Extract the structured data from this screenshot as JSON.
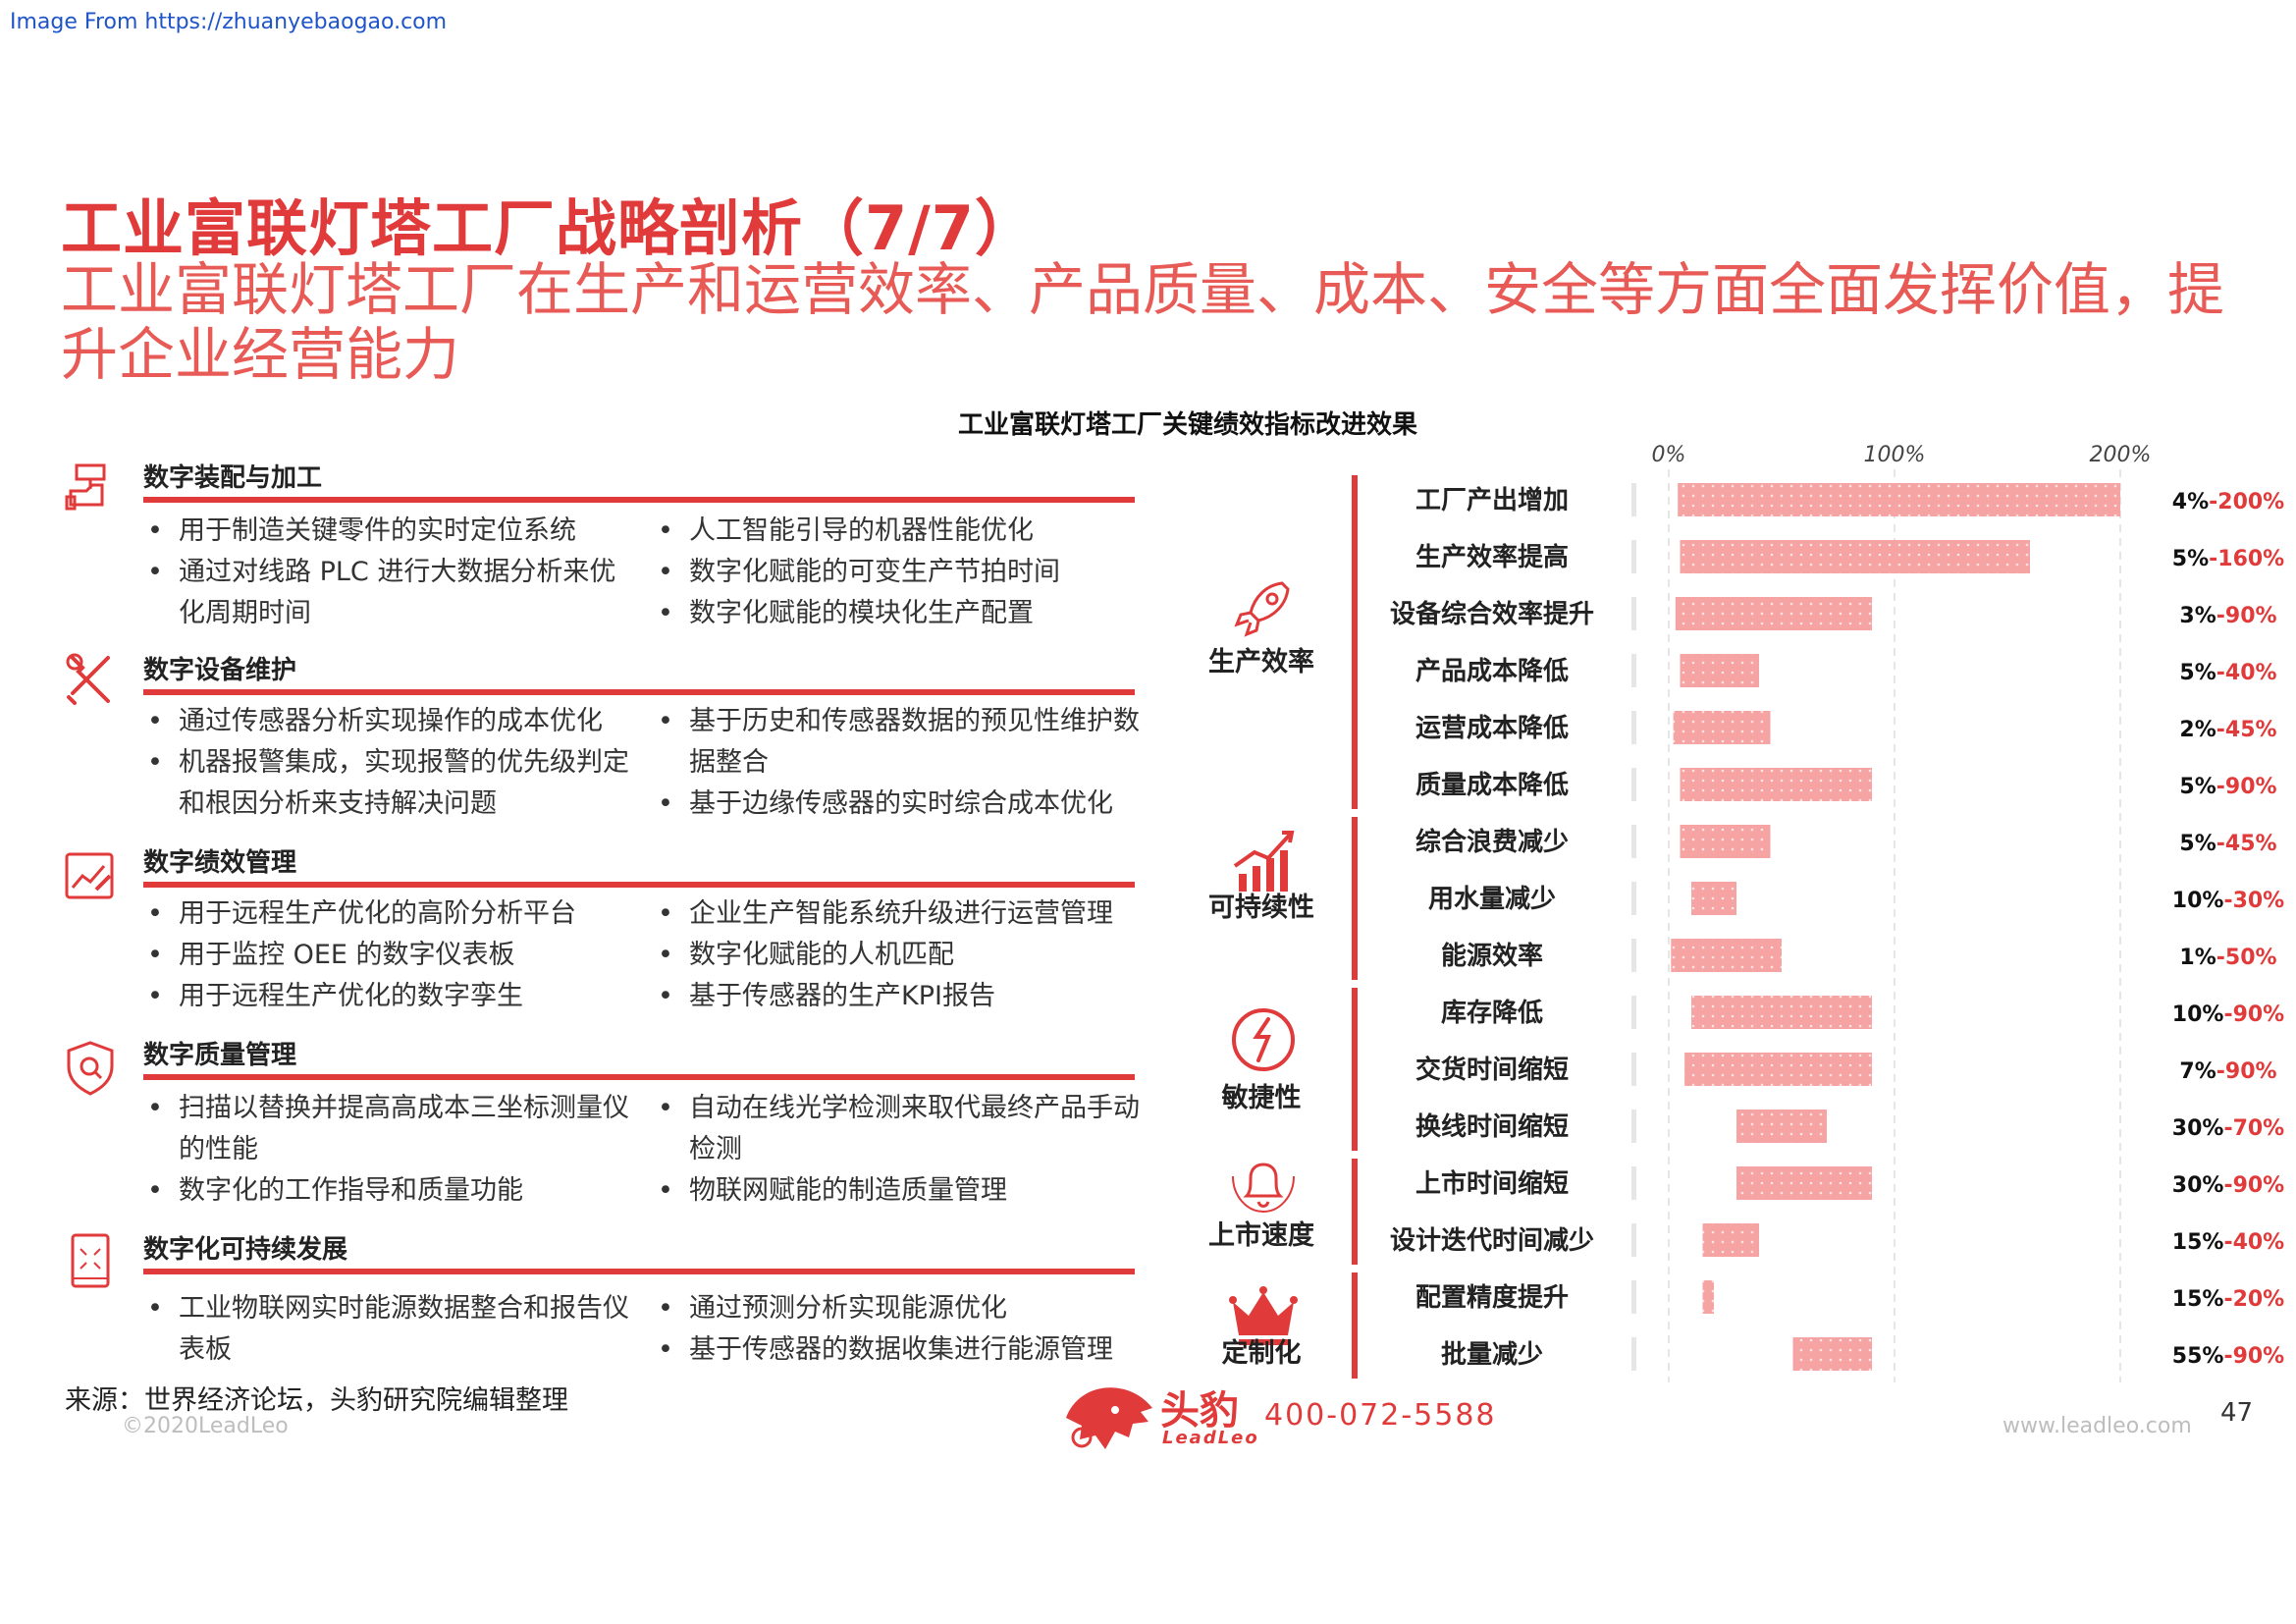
{
  "header": {
    "source_link": "Image From https://zhuanyebaogao.com",
    "title": "工业富联灯塔工厂战略剖析（7/7）",
    "subtitle": "工业富联灯塔工厂在生产和运营效率、产品质量、成本、安全等方面全面发挥价值，提升企业经营能力"
  },
  "sections": [
    {
      "title": "数字装配与加工",
      "icon": "assembly-icon",
      "left": [
        "用于制造关键零件的实时定位系统",
        "通过对线路 PLC 进行大数据分析来优化周期时间"
      ],
      "right": [
        "人工智能引导的机器性能优化",
        "数字化赋能的可变生产节拍时间",
        "数字化赋能的模块化生产配置"
      ]
    },
    {
      "title": "数字设备维护",
      "icon": "wrench-screwdriver-icon",
      "left": [
        "通过传感器分析实现操作的成本优化",
        "机器报警集成，实现报警的优先级判定和根因分析来支持解决问题"
      ],
      "right": [
        "基于历史和传感器数据的预见性维护数据整合",
        "基于边缘传感器的实时综合成本优化"
      ]
    },
    {
      "title": "数字绩效管理",
      "icon": "performance-chart-icon",
      "left": [
        "用于远程生产优化的高阶分析平台",
        "用于监控 OEE 的数字仪表板",
        "用于远程生产优化的数字孪生"
      ],
      "right": [
        "企业生产智能系统升级进行运营管理",
        "数字化赋能的人机匹配",
        "基于传感器的生产KPI报告"
      ]
    },
    {
      "title": "数字质量管理",
      "icon": "quality-shield-icon",
      "left": [
        "扫描以替换并提高高成本三坐标测量仪的性能",
        "数字化的工作指导和质量功能"
      ],
      "right": [
        "自动在线光学检测来取代最终产品手动检测",
        "物联网赋能的制造质量管理"
      ]
    },
    {
      "title": "数字化可持续发展",
      "icon": "tablet-icon",
      "left": [
        "工业物联网实时能源数据整合和报告仪表板"
      ],
      "right": [
        "通过预测分析实现能源优化",
        "基于传感器的数据收集进行能源管理"
      ]
    }
  ],
  "chart_data": {
    "type": "bar",
    "subtype": "floating-range",
    "title": "工业富联灯塔工厂关键绩效指标改进效果",
    "xlim": [
      0,
      200
    ],
    "xticks": [
      "0%",
      "100%",
      "200%"
    ],
    "grid": true,
    "accent_color": "#e03a3a",
    "bar_color": "#f6a3a3",
    "groups": [
      {
        "label": "生产效率",
        "icon": "rocket-icon",
        "items": 6
      },
      {
        "label": "可持续性",
        "icon": "growth-chart-icon",
        "items": 3
      },
      {
        "label": "敏捷性",
        "icon": "speed-arrow-icon",
        "items": 3
      },
      {
        "label": "上市速度",
        "icon": "bell-icon",
        "items": 2
      },
      {
        "label": "定制化",
        "icon": "crown-icon",
        "items": 2
      }
    ],
    "categories": [
      "工厂产出增加",
      "生产效率提高",
      "设备综合效率提升",
      "产品成本降低",
      "运营成本降低",
      "质量成本降低",
      "综合浪费减少",
      "用水量减少",
      "能源效率",
      "库存降低",
      "交货时间缩短",
      "换线时间缩短",
      "上市时间缩短",
      "设计迭代时间减少",
      "配置精度提升",
      "批量减少"
    ],
    "low": [
      4,
      5,
      3,
      5,
      2,
      5,
      5,
      10,
      1,
      10,
      7,
      30,
      30,
      15,
      15,
      55
    ],
    "high": [
      200,
      160,
      90,
      40,
      45,
      90,
      45,
      30,
      50,
      90,
      90,
      70,
      90,
      40,
      20,
      90
    ],
    "value_labels": [
      {
        "low": "4%",
        "high": "200%"
      },
      {
        "low": "5%",
        "high": "160%"
      },
      {
        "low": "3%",
        "high": "90%"
      },
      {
        "low": "5%",
        "high": "40%"
      },
      {
        "low": "2%",
        "high": "45%"
      },
      {
        "low": "5%",
        "high": "90%"
      },
      {
        "low": "5%",
        "high": "45%"
      },
      {
        "low": "10%",
        "high": "30%"
      },
      {
        "low": "1%",
        "high": "50%"
      },
      {
        "low": "10%",
        "high": "90%"
      },
      {
        "low": "7%",
        "high": "90%"
      },
      {
        "low": "30%",
        "high": "70%"
      },
      {
        "low": "30%",
        "high": "90%"
      },
      {
        "low": "15%",
        "high": "40%"
      },
      {
        "low": "15%",
        "high": "20%"
      },
      {
        "low": "55%",
        "high": "90%"
      }
    ]
  },
  "footer": {
    "source": "来源：世界经济论坛，头豹研究院编辑整理",
    "copyright": "©2020LeadLeo",
    "logo_cn": "头豹",
    "logo_en": "LeadLeo",
    "phone": "400-072-5588",
    "website": "www.leadleo.com",
    "page_number": "47"
  }
}
